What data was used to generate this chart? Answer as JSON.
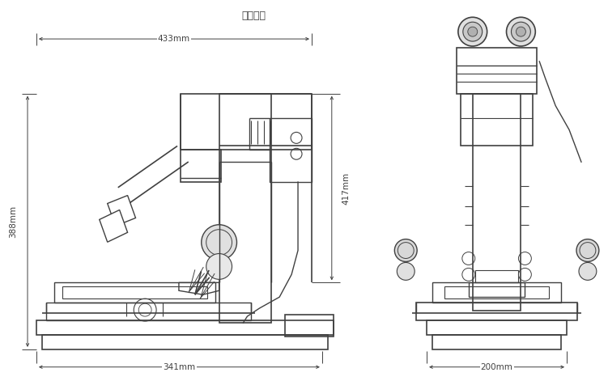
{
  "title": "外形尺寸",
  "bg_color": "#ffffff",
  "line_color": "#404040",
  "figsize": [
    7.51,
    4.71
  ],
  "dpi": 100,
  "dim_433_text": "433mm",
  "dim_388_text": "388mm",
  "dim_417_text": "417mm",
  "dim_341_text": "341mm",
  "dim_200_text": "200mm",
  "font_size_title": 9,
  "font_size_dim": 7.5
}
